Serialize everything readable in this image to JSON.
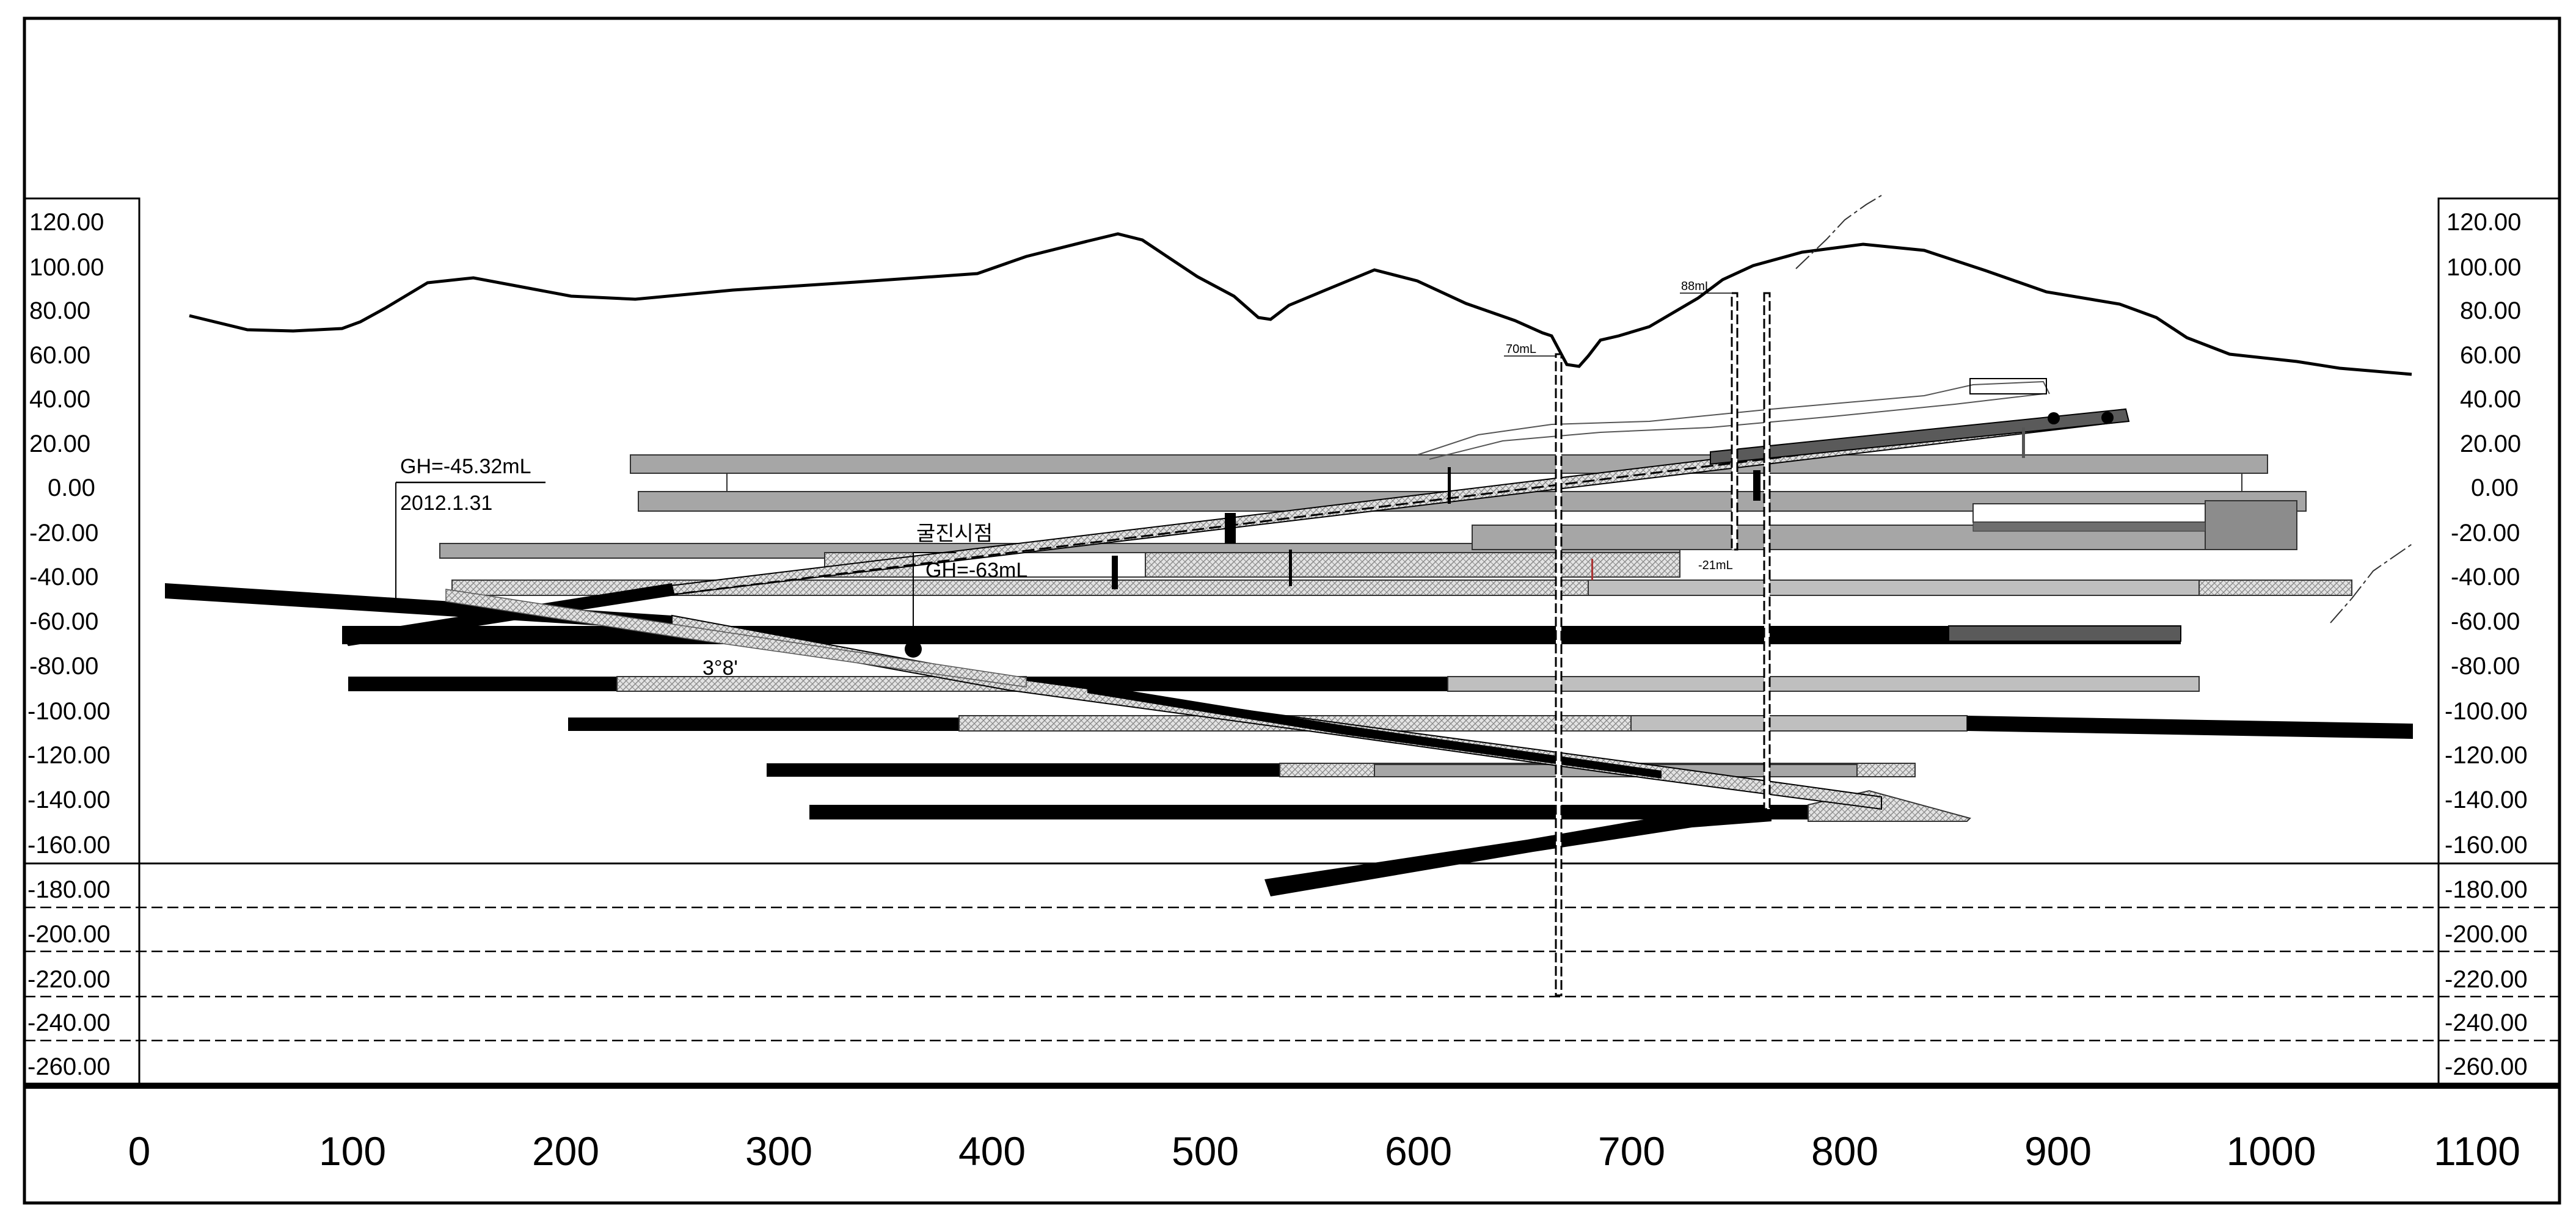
{
  "y_axis": {
    "labels": [
      "120.00",
      "100.00",
      "80.00",
      "60.00",
      "40.00",
      "20.00",
      "0.00",
      "-20.00",
      "-40.00",
      "-60.00",
      "-80.00",
      "-100.00",
      "-120.00",
      "-140.00",
      "-160.00",
      "-180.00",
      "-200.00",
      "-220.00",
      "-240.00",
      "-260.00"
    ]
  },
  "x_axis": {
    "labels": [
      "0",
      "100",
      "200",
      "300",
      "400",
      "500",
      "600",
      "700",
      "800",
      "900",
      "1000",
      "1100"
    ]
  },
  "annotations": {
    "gh_level": "GH=-45.32mL",
    "date": "2012.1.31",
    "start_point": "굴진시점",
    "start_gh": "GH=-63mL",
    "angle": "3°8'",
    "shaft_left": "70mL",
    "shaft_right": "88mL",
    "level_21": "-21mL"
  },
  "colors": {
    "line": "#000000",
    "gray_level": "#a6a6a6",
    "dark_gray": "#5a5a5a",
    "hatch": "#c8c8c8"
  }
}
